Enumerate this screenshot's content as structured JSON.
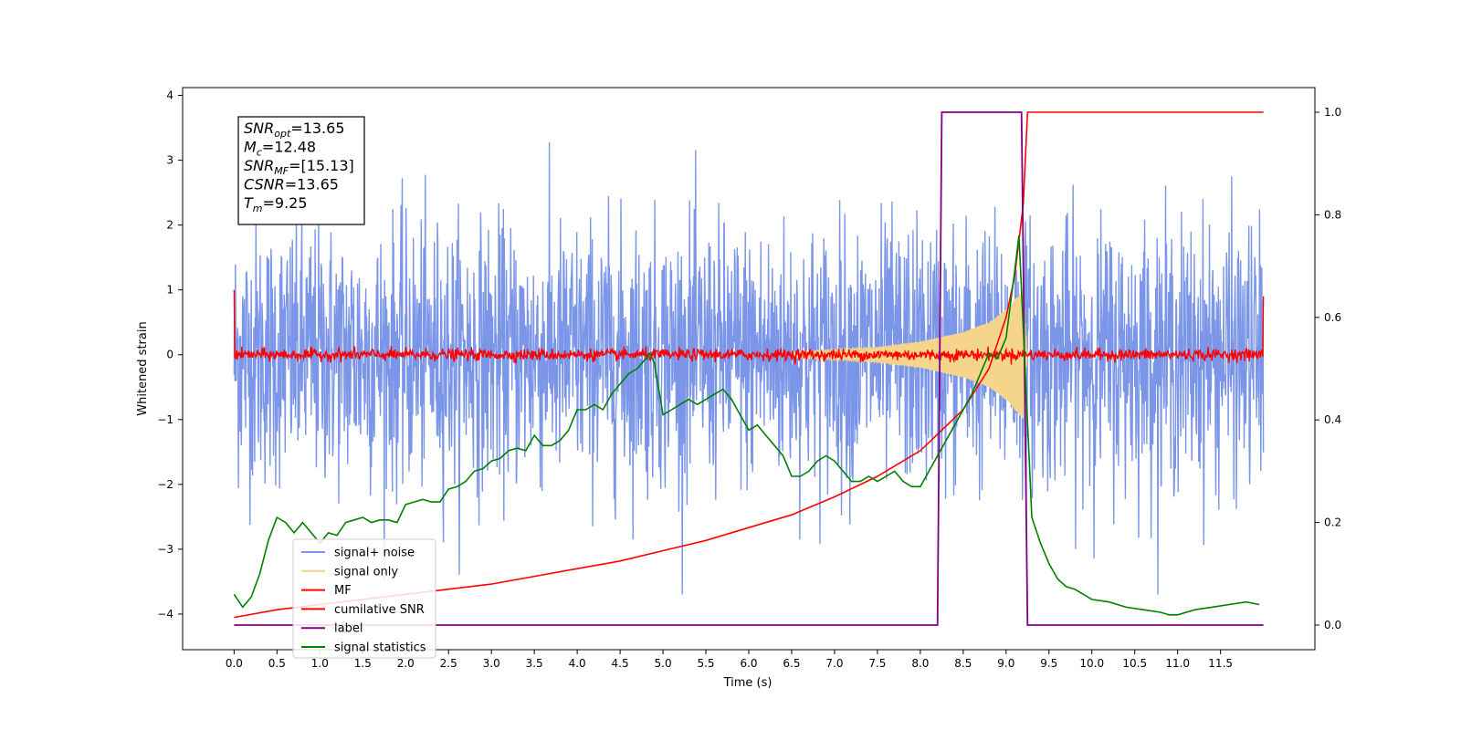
{
  "chart_data": {
    "type": "line",
    "xlabel": "Time (s)",
    "ylabel": "Whitened strain",
    "xlim": [
      -0.6,
      12.6
    ],
    "ylim_left": [
      -4.55,
      4.12
    ],
    "ylim_right": [
      -0.048,
      1.048
    ],
    "x_ticks": [
      "0.0",
      "0.5",
      "1.0",
      "1.5",
      "2.0",
      "2.5",
      "3.0",
      "3.5",
      "4.0",
      "4.5",
      "5.0",
      "5.5",
      "6.0",
      "6.5",
      "7.0",
      "7.5",
      "8.0",
      "8.5",
      "9.0",
      "9.5",
      "10.0",
      "10.5",
      "11.0",
      "11.5"
    ],
    "y_ticks_left": [
      "4",
      "3",
      "2",
      "1",
      "0",
      "−1",
      "−2",
      "−3",
      "−4"
    ],
    "y_ticks_right": [
      "1.0",
      "0.8",
      "0.6",
      "0.4",
      "0.2",
      "0.0"
    ],
    "legend_position": "lower-left",
    "grid": false,
    "annotation": [
      {
        "main": "SNR",
        "sub": "opt",
        "value": "=13.65"
      },
      {
        "main": "M",
        "sub": "c",
        "value": "=12.48"
      },
      {
        "main": "SNR",
        "sub": "MF",
        "value": "=[15.13]"
      },
      {
        "main": "CSNR",
        "sub": "",
        "value": "=13.65"
      },
      {
        "main": "T",
        "sub": "m",
        "value": "=9.25"
      }
    ],
    "series": [
      {
        "name": "signal+ noise",
        "axis": "left",
        "color": "#7b96e8",
        "description": "white noise, sigma approx 1, x from 0 to 12",
        "x_range": [
          0,
          12
        ]
      },
      {
        "name": "signal only",
        "axis": "left",
        "color": "#f5d48c",
        "description": "chirp with growing amplitude up to about 1.0 near t=9.2",
        "envelope_x": [
          6.5,
          7.0,
          7.5,
          8.0,
          8.5,
          8.8,
          9.0,
          9.1,
          9.2,
          9.25
        ],
        "envelope_amp": [
          0.05,
          0.08,
          0.12,
          0.2,
          0.35,
          0.5,
          0.7,
          0.85,
          1.0,
          0.0
        ]
      },
      {
        "name": "MF",
        "axis": "left",
        "color": "#ff0000",
        "description": "matched filter output, noisy around 0 with edges at t=0 (1.0) and t=12 (0.9)",
        "x_range": [
          0,
          12
        ]
      },
      {
        "name": "cumilative SNR",
        "axis": "right",
        "color": "#ff0000",
        "x": [
          0,
          0.5,
          1,
          1.5,
          2,
          2.5,
          3,
          3.5,
          4,
          4.5,
          5,
          5.5,
          6,
          6.5,
          7,
          7.5,
          8,
          8.5,
          8.8,
          9.0,
          9.1,
          9.2,
          9.25,
          12
        ],
        "y": [
          0.015,
          0.03,
          0.04,
          0.05,
          0.06,
          0.07,
          0.08,
          0.095,
          0.11,
          0.125,
          0.145,
          0.165,
          0.19,
          0.215,
          0.25,
          0.29,
          0.34,
          0.42,
          0.5,
          0.6,
          0.68,
          0.82,
          1.0,
          1.0
        ]
      },
      {
        "name": "label",
        "axis": "right",
        "color": "#800080",
        "x": [
          0,
          8.2,
          8.25,
          9.18,
          9.25,
          12
        ],
        "y": [
          0,
          0,
          1,
          1,
          0,
          0
        ]
      },
      {
        "name": "signal statistics",
        "axis": "right",
        "color": "#008000",
        "x": [
          0,
          0.1,
          0.2,
          0.3,
          0.4,
          0.5,
          0.6,
          0.7,
          0.8,
          0.9,
          1.0,
          1.1,
          1.2,
          1.3,
          1.4,
          1.5,
          1.6,
          1.7,
          1.8,
          1.9,
          2.0,
          2.1,
          2.2,
          2.3,
          2.4,
          2.5,
          2.6,
          2.7,
          2.8,
          2.9,
          3.0,
          3.1,
          3.2,
          3.3,
          3.4,
          3.5,
          3.6,
          3.7,
          3.8,
          3.9,
          4.0,
          4.1,
          4.2,
          4.3,
          4.4,
          4.5,
          4.6,
          4.7,
          4.8,
          4.85,
          4.9,
          5.0,
          5.1,
          5.2,
          5.3,
          5.4,
          5.5,
          5.6,
          5.7,
          5.8,
          5.9,
          6.0,
          6.1,
          6.2,
          6.3,
          6.4,
          6.5,
          6.6,
          6.7,
          6.8,
          6.9,
          7.0,
          7.1,
          7.2,
          7.3,
          7.4,
          7.5,
          7.6,
          7.7,
          7.8,
          7.9,
          8.0,
          8.1,
          8.2,
          8.3,
          8.4,
          8.5,
          8.6,
          8.7,
          8.8,
          8.9,
          9.0,
          9.1,
          9.15,
          9.2,
          9.3,
          9.4,
          9.5,
          9.6,
          9.7,
          9.8,
          9.9,
          10.0,
          10.2,
          10.4,
          10.6,
          10.8,
          10.9,
          11.0,
          11.2,
          11.4,
          11.6,
          11.8,
          11.95
        ],
        "y": [
          0.06,
          0.035,
          0.055,
          0.1,
          0.165,
          0.21,
          0.2,
          0.18,
          0.2,
          0.18,
          0.16,
          0.18,
          0.175,
          0.2,
          0.205,
          0.21,
          0.2,
          0.205,
          0.205,
          0.2,
          0.235,
          0.24,
          0.245,
          0.24,
          0.24,
          0.265,
          0.27,
          0.28,
          0.3,
          0.305,
          0.32,
          0.325,
          0.34,
          0.345,
          0.34,
          0.37,
          0.35,
          0.35,
          0.36,
          0.38,
          0.42,
          0.42,
          0.43,
          0.42,
          0.45,
          0.47,
          0.49,
          0.5,
          0.52,
          0.53,
          0.51,
          0.41,
          0.42,
          0.43,
          0.44,
          0.43,
          0.44,
          0.45,
          0.46,
          0.44,
          0.41,
          0.38,
          0.39,
          0.37,
          0.35,
          0.33,
          0.29,
          0.29,
          0.3,
          0.32,
          0.33,
          0.32,
          0.3,
          0.28,
          0.28,
          0.29,
          0.28,
          0.29,
          0.3,
          0.28,
          0.27,
          0.27,
          0.3,
          0.33,
          0.36,
          0.39,
          0.42,
          0.45,
          0.49,
          0.53,
          0.52,
          0.56,
          0.69,
          0.76,
          0.58,
          0.21,
          0.16,
          0.12,
          0.09,
          0.075,
          0.07,
          0.06,
          0.05,
          0.045,
          0.035,
          0.03,
          0.025,
          0.02,
          0.02,
          0.03,
          0.035,
          0.04,
          0.045,
          0.04
        ]
      }
    ]
  }
}
